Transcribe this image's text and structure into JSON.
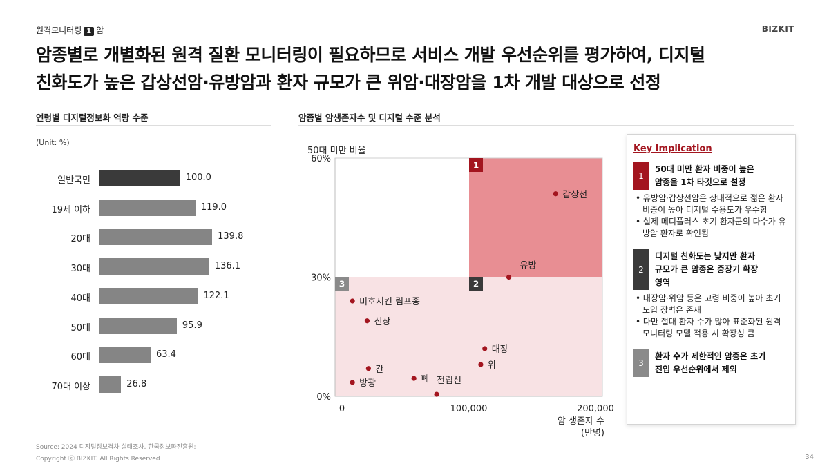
{
  "header": {
    "section_label": "원격모니터링",
    "section_number": "1",
    "section_topic": "암",
    "logo": "BIZKIT",
    "headline_line1": "암종별로 개별화된 원격 질환 모니터링이 필요하므로 서비스 개발 우선순위를 평가하여, 디지털",
    "headline_line2": "친화도가 높은 갑상선암·유방암과 환자 규모가 큰 위암·대장암을 1차 개발 대상으로 선정"
  },
  "left_panel": {
    "title": "연령별 디지털정보화 역량 수준",
    "unit": "(Unit: %)",
    "chart_data": {
      "type": "bar",
      "orientation": "horizontal",
      "categories": [
        "일반국민",
        "19세 이하",
        "20대",
        "30대",
        "40대",
        "50대",
        "60대",
        "70대 이상"
      ],
      "values": [
        100.0,
        119.0,
        139.8,
        136.1,
        122.1,
        95.9,
        63.4,
        26.8
      ],
      "value_labels": [
        "100.0",
        "119.0",
        "139.8",
        "136.1",
        "122.1",
        "95.9",
        "63.4",
        "26.8"
      ],
      "highlight_index": 0,
      "colors": {
        "highlight": "#3a3a3a",
        "default": "#858585"
      }
    }
  },
  "right_panel": {
    "title": "암종별 암생존자수 및 디지털 수준 분석",
    "chart_data": {
      "type": "scatter",
      "ylabel": "50대 미만 비율",
      "xlabel_line1": "암 생존자 수",
      "xlabel_line2": "(만명)",
      "x_ticks": [
        "0",
        "100,000",
        "200,000"
      ],
      "y_ticks": [
        "60%",
        "30%",
        "0%"
      ],
      "xlim": [
        0,
        200000
      ],
      "ylim": [
        0,
        60
      ],
      "points": [
        {
          "name": "갑상선",
          "x": 165000,
          "y": 51
        },
        {
          "name": "유방",
          "x": 130000,
          "y": 30
        },
        {
          "name": "비호지킨 림프종",
          "x": 13000,
          "y": 24
        },
        {
          "name": "신장",
          "x": 24000,
          "y": 19
        },
        {
          "name": "대장",
          "x": 112000,
          "y": 12
        },
        {
          "name": "위",
          "x": 109000,
          "y": 8
        },
        {
          "name": "간",
          "x": 25000,
          "y": 7
        },
        {
          "name": "방광",
          "x": 13000,
          "y": 3.5
        },
        {
          "name": "폐",
          "x": 59000,
          "y": 4.5
        },
        {
          "name": "전립선",
          "x": 76000,
          "y": 0.5
        }
      ],
      "quadrants": [
        {
          "badge": "1",
          "fill": "#e88e93"
        },
        {
          "badge": "2",
          "fill": "#f8e2e4"
        },
        {
          "badge": "3",
          "fill": "#f8e2e4"
        }
      ],
      "colors": {
        "point": "#a3151f",
        "badge1": "#a3151f",
        "badge2": "#3a3a3a",
        "badge3": "#8a8a8a"
      }
    }
  },
  "key_implication": {
    "title": "Key Implication",
    "items": [
      {
        "badge": "1",
        "color": "#a3151f",
        "heading": [
          "50대 미만 환자 비중이 높은",
          "암종을 1차 타깃으로 설정"
        ],
        "bullets": [
          "• 유방암·갑상선암은 상대적으로 젊은 환자 비중이 높아 디지털 수용도가 우수함",
          "• 실제 메디플러스 초기 환자군의 다수가 유방암 환자로 확인됨"
        ]
      },
      {
        "badge": "2",
        "color": "#3a3a3a",
        "heading": [
          "디지털 친화도는 낮지만 환자",
          "규모가 큰 암종은 중장기 확장",
          "영역"
        ],
        "bullets": [
          "• 대장암·위암 등은 고령 비중이 높아 초기 도입 장벽은 존재",
          "• 다만 절대 환자 수가 많아 표준화된 원격 모니터링 모델 적용 시 확장성 큼"
        ]
      },
      {
        "badge": "3",
        "color": "#8a8a8a",
        "heading": [
          "환자 수가 제한적인 암종은 초기",
          "진입 우선순위에서 제외"
        ],
        "bullets": []
      }
    ]
  },
  "footer": {
    "source": "Source: 2024 디지털정보격차 실태조사, 한국정보화진흥원;",
    "copyright": "Copyright ⓒ BIZKIT. All Rights Reserved",
    "page_number": "34"
  }
}
